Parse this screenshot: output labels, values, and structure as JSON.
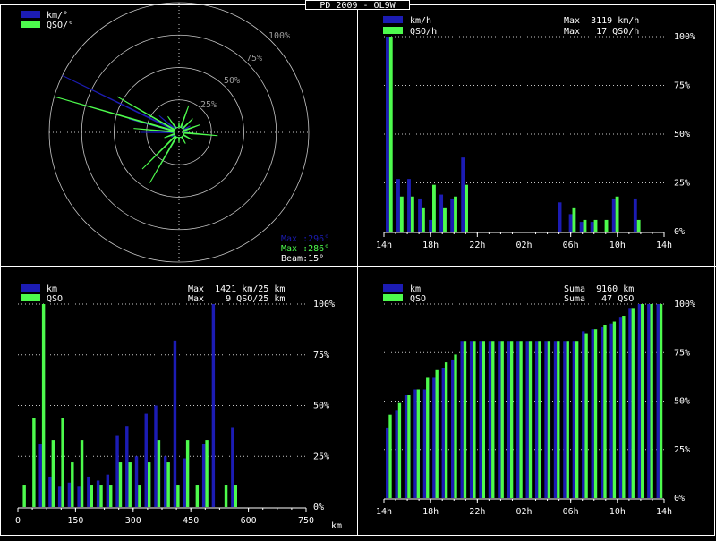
{
  "title": "PD 2009 - OL9W",
  "colors": {
    "blue": "#1c1cb4",
    "green": "#4dfb4d",
    "grid": "#c8c8c8",
    "bg": "#000000",
    "text": "#ffffff"
  },
  "chart_data": [
    {
      "type": "polar",
      "legend": [
        "km/°",
        "QSO/°"
      ],
      "ring_labels": [
        "100%",
        "75%",
        "50%",
        "25%"
      ],
      "max_km_label": "Max :296°",
      "max_qso_label": "Max :286°",
      "beam_label": "Beam:15°",
      "series": [
        {
          "name": "km/°",
          "points": [
            [
              0,
              0.05
            ],
            [
              30,
              0.06
            ],
            [
              60,
              0.1
            ],
            [
              90,
              0.07
            ],
            [
              120,
              0.06
            ],
            [
              150,
              0.05
            ],
            [
              180,
              0.05
            ],
            [
              210,
              0.3
            ],
            [
              240,
              0.07
            ],
            [
              270,
              0.3
            ],
            [
              285,
              0.4
            ],
            [
              296,
              1.0
            ],
            [
              310,
              0.2
            ],
            [
              330,
              0.06
            ]
          ]
        },
        {
          "name": "QSO/°",
          "points": [
            [
              0,
              0.08
            ],
            [
              20,
              0.22
            ],
            [
              45,
              0.15
            ],
            [
              70,
              0.17
            ],
            [
              95,
              0.3
            ],
            [
              120,
              0.12
            ],
            [
              150,
              0.1
            ],
            [
              180,
              0.08
            ],
            [
              210,
              0.45
            ],
            [
              225,
              0.4
            ],
            [
              250,
              0.12
            ],
            [
              275,
              0.35
            ],
            [
              286,
              1.0
            ],
            [
              300,
              0.55
            ],
            [
              325,
              0.15
            ]
          ]
        }
      ]
    },
    {
      "type": "bar",
      "legend": [
        "km/h",
        "QSO/h"
      ],
      "stats": [
        "Max  3119 km/h",
        "Max   17 QSO/h"
      ],
      "xticks": [
        "14h",
        "18h",
        "22h",
        "02h",
        "06h",
        "10h",
        "14h"
      ],
      "yticks": [
        "100%",
        "75%",
        "50%",
        "25%",
        "0%"
      ],
      "ylim": [
        0,
        100
      ],
      "km": [
        100,
        27,
        27,
        17,
        6,
        19,
        17,
        38,
        0,
        0,
        0,
        0,
        0,
        0,
        0,
        0,
        15,
        9,
        5,
        5,
        0,
        17,
        0,
        17,
        0,
        0
      ],
      "qso": [
        100,
        18,
        18,
        12,
        24,
        12,
        18,
        24,
        0,
        0,
        0,
        0,
        0,
        0,
        0,
        0,
        0,
        12,
        6,
        6,
        6,
        18,
        0,
        6,
        0,
        0
      ]
    },
    {
      "type": "bar",
      "legend": [
        "km",
        "QSO"
      ],
      "stats": [
        "Max  1421 km/25 km",
        "Max    9 QSO/25 km"
      ],
      "xticks": [
        "0",
        "150",
        "300",
        "450",
        "600",
        "750"
      ],
      "xlabel": "km",
      "yticks": [
        "100%",
        "75%",
        "50%",
        "25%",
        "0%"
      ],
      "ylim": [
        0,
        100
      ],
      "km": [
        0,
        0,
        31,
        15,
        10,
        12,
        10,
        15,
        13,
        16,
        35,
        40,
        25,
        46,
        50,
        25,
        82,
        24,
        0,
        31,
        100,
        0,
        39,
        0,
        0,
        0,
        0,
        0,
        0,
        0
      ],
      "qso": [
        11,
        44,
        100,
        33,
        44,
        22,
        33,
        11,
        11,
        11,
        22,
        22,
        11,
        22,
        33,
        22,
        11,
        33,
        11,
        33,
        0,
        11,
        11,
        0,
        0,
        0,
        0,
        0,
        0,
        0
      ]
    },
    {
      "type": "bar",
      "legend": [
        "km",
        "QSO"
      ],
      "stats": [
        "Suma  9160 km",
        "Suma   47 QSO"
      ],
      "xticks": [
        "14h",
        "18h",
        "22h",
        "02h",
        "06h",
        "10h",
        "14h"
      ],
      "yticks": [
        "100%",
        "75%",
        "50%",
        "25%",
        "0%"
      ],
      "ylim": [
        0,
        100
      ],
      "km": [
        36,
        45,
        53,
        56,
        56,
        62,
        67,
        71,
        81,
        81,
        81,
        81,
        81,
        81,
        81,
        81,
        81,
        81,
        81,
        81,
        81,
        86,
        87,
        88,
        90,
        93,
        98,
        100,
        100,
        100
      ],
      "qso": [
        43,
        49,
        53,
        56,
        62,
        66,
        70,
        74,
        81,
        81,
        81,
        81,
        81,
        81,
        81,
        81,
        81,
        81,
        81,
        81,
        81,
        85,
        87,
        89,
        91,
        94,
        98,
        100,
        100,
        100
      ]
    }
  ]
}
